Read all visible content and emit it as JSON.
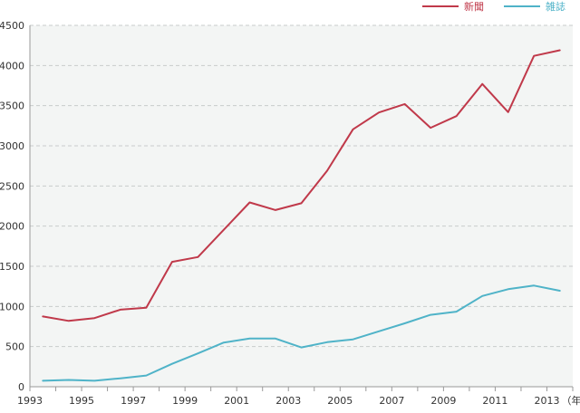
{
  "chart_data": {
    "type": "line",
    "x": [
      1993.5,
      1994.5,
      1995.5,
      1996.5,
      1997.5,
      1998.5,
      1999.5,
      2000.5,
      2001.5,
      2002.5,
      2003.5,
      2004.5,
      2005.5,
      2006.5,
      2007.5,
      2008.5,
      2009.5,
      2010.5,
      2011.5,
      2012.5,
      2013.5
    ],
    "series": [
      {
        "name": "新聞",
        "color": "#c0394a",
        "values": [
          875,
          820,
          855,
          960,
          985,
          1555,
          1615,
          1955,
          2295,
          2200,
          2285,
          2690,
          3205,
          3415,
          3520,
          3225,
          3370,
          3770,
          3420,
          4120,
          4190
        ]
      },
      {
        "name": "雑誌",
        "color": "#4fb3c8",
        "values": [
          75,
          85,
          75,
          105,
          140,
          285,
          415,
          550,
          600,
          600,
          490,
          555,
          590,
          690,
          790,
          895,
          935,
          1130,
          1215,
          1260,
          1195
        ]
      }
    ],
    "x_ticks": [
      {
        "value": 1993,
        "label": "1993"
      },
      {
        "value": 1995,
        "label": "1995"
      },
      {
        "value": 1997,
        "label": "1997"
      },
      {
        "value": 1999,
        "label": "1999"
      },
      {
        "value": 2001,
        "label": "2001"
      },
      {
        "value": 2003,
        "label": "2003"
      },
      {
        "value": 2005,
        "label": "2005"
      },
      {
        "value": 2007,
        "label": "2007"
      },
      {
        "value": 2009,
        "label": "2009"
      },
      {
        "value": 2011,
        "label": "2011"
      },
      {
        "value": 2013,
        "label": "2013"
      }
    ],
    "x_unit": "（年）",
    "y_ticks": [
      0,
      500,
      1000,
      1500,
      2000,
      2500,
      3000,
      3500,
      4000,
      4500
    ],
    "ylim": [
      0,
      4500
    ],
    "xlim": [
      1993,
      2014
    ],
    "grid": true,
    "legend_position": "top-right",
    "plot_background": "#f3f5f4"
  }
}
